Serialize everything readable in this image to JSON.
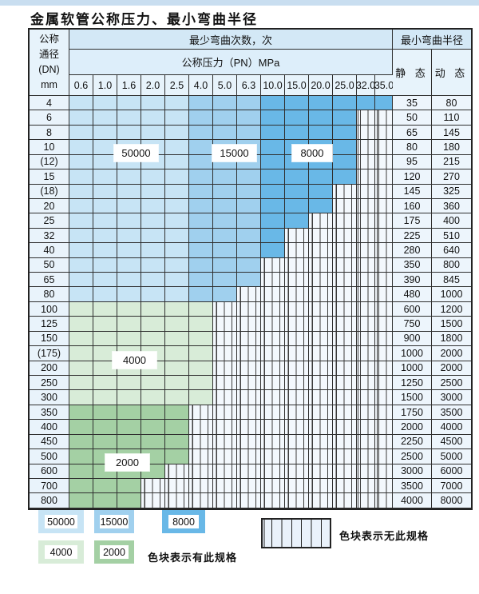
{
  "title": "金属软管公称压力、最小弯曲半径",
  "table": {
    "header": {
      "dn_lines": [
        "公称",
        "通径",
        "(DN)",
        "mm"
      ],
      "cycles_title": "最少弯曲次数，次",
      "pressure_title": "公称压力（PN）MPa",
      "pressures": [
        "0.6",
        "1.0",
        "1.6",
        "2.0",
        "2.5",
        "4.0",
        "5.0",
        "6.3",
        "10.0",
        "15.0",
        "20.0",
        "25.0",
        "32.0",
        "35.0"
      ],
      "radius_title": "最小弯曲半径",
      "static_label": "静 态",
      "dynamic_label": "动 态"
    },
    "blue_band_breaks": [
      4,
      7
    ],
    "rows": [
      {
        "dn": "4",
        "fill": "blue",
        "last": 13,
        "static": "35",
        "dynamic": "80"
      },
      {
        "dn": "6",
        "fill": "blue",
        "last": 11,
        "static": "50",
        "dynamic": "110"
      },
      {
        "dn": "8",
        "fill": "blue",
        "last": 11,
        "static": "65",
        "dynamic": "145"
      },
      {
        "dn": "10",
        "fill": "blue",
        "last": 11,
        "static": "80",
        "dynamic": "180"
      },
      {
        "dn": "(12)",
        "fill": "blue",
        "last": 11,
        "static": "95",
        "dynamic": "215"
      },
      {
        "dn": "15",
        "fill": "blue",
        "last": 11,
        "static": "120",
        "dynamic": "270"
      },
      {
        "dn": "(18)",
        "fill": "blue",
        "last": 10,
        "static": "145",
        "dynamic": "325"
      },
      {
        "dn": "20",
        "fill": "blue",
        "last": 10,
        "static": "160",
        "dynamic": "360"
      },
      {
        "dn": "25",
        "fill": "blue",
        "last": 9,
        "static": "175",
        "dynamic": "400"
      },
      {
        "dn": "32",
        "fill": "blue",
        "last": 8,
        "static": "225",
        "dynamic": "510"
      },
      {
        "dn": "40",
        "fill": "blue",
        "last": 8,
        "static": "280",
        "dynamic": "640"
      },
      {
        "dn": "50",
        "fill": "blue",
        "last": 7,
        "static": "350",
        "dynamic": "800"
      },
      {
        "dn": "65",
        "fill": "blue",
        "last": 7,
        "static": "390",
        "dynamic": "845"
      },
      {
        "dn": "80",
        "fill": "blue",
        "last": 6,
        "static": "480",
        "dynamic": "1000"
      },
      {
        "dn": "100",
        "fill": "g4",
        "last": 5,
        "static": "600",
        "dynamic": "1200"
      },
      {
        "dn": "125",
        "fill": "g4",
        "last": 5,
        "static": "750",
        "dynamic": "1500"
      },
      {
        "dn": "150",
        "fill": "g4",
        "last": 5,
        "static": "900",
        "dynamic": "1800"
      },
      {
        "dn": "(175)",
        "fill": "g4",
        "last": 5,
        "static": "1000",
        "dynamic": "2000"
      },
      {
        "dn": "200",
        "fill": "g4",
        "last": 5,
        "static": "1000",
        "dynamic": "2000"
      },
      {
        "dn": "250",
        "fill": "g4",
        "last": 5,
        "static": "1250",
        "dynamic": "2500"
      },
      {
        "dn": "300",
        "fill": "g4",
        "last": 5,
        "static": "1500",
        "dynamic": "3000"
      },
      {
        "dn": "350",
        "fill": "g2",
        "last": 4,
        "static": "1750",
        "dynamic": "3500"
      },
      {
        "dn": "400",
        "fill": "g2",
        "last": 4,
        "static": "2000",
        "dynamic": "4000"
      },
      {
        "dn": "450",
        "fill": "g2",
        "last": 4,
        "static": "2250",
        "dynamic": "4500"
      },
      {
        "dn": "500",
        "fill": "g2",
        "last": 4,
        "static": "2500",
        "dynamic": "5000"
      },
      {
        "dn": "600",
        "fill": "g2",
        "last": 3,
        "static": "3000",
        "dynamic": "6000"
      },
      {
        "dn": "700",
        "fill": "g2",
        "last": 2,
        "static": "3500",
        "dynamic": "7000"
      },
      {
        "dn": "800",
        "fill": "g2",
        "last": 2,
        "static": "4000",
        "dynamic": "8000"
      }
    ],
    "cycle_labels": {
      "l50000": "50000",
      "l15000": "15000",
      "l8000": "8000",
      "l4000": "4000",
      "l2000": "2000"
    }
  },
  "legend": {
    "chips": [
      {
        "value": "50000",
        "color": "#c7e4f5",
        "row": 0
      },
      {
        "value": "15000",
        "color": "#a0d0ee",
        "row": 0
      },
      {
        "value": "8000",
        "color": "#69b8e7",
        "row": 0
      },
      {
        "value": "4000",
        "color": "#d8ecd8",
        "row": 1
      },
      {
        "value": "2000",
        "color": "#a4d0a4",
        "row": 1
      }
    ],
    "has_spec_text": "色块表示有此规格",
    "no_spec_text": "色块表示无此规格"
  },
  "colors": {
    "cycles_50000": "#c7e4f5",
    "cycles_15000": "#a0d0ee",
    "cycles_8000": "#69b8e7",
    "cycles_4000": "#d8ecd8",
    "cycles_2000": "#a4d0a4",
    "header_band": "#d3e8f6",
    "grid_line": "#2f2f2f"
  }
}
